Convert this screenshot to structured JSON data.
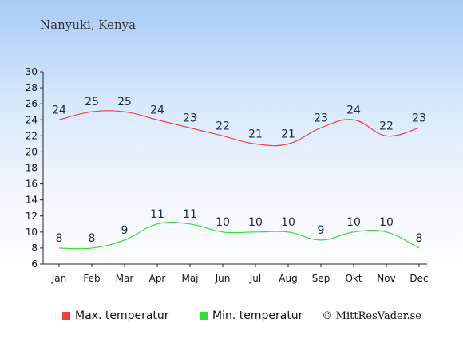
{
  "chart_data": {
    "type": "line",
    "title": "Nanyuki, Kenya",
    "categories": [
      "Jan",
      "Feb",
      "Mar",
      "Apr",
      "Maj",
      "Jun",
      "Jul",
      "Aug",
      "Sep",
      "Okt",
      "Nov",
      "Dec"
    ],
    "series": [
      {
        "name": "Max. temperatur",
        "color": "#f04040",
        "values": [
          24,
          25,
          25,
          24,
          23,
          22,
          21,
          21,
          23,
          24,
          22,
          23
        ]
      },
      {
        "name": "Min. temperatur",
        "color": "#33dd33",
        "values": [
          8,
          8,
          9,
          11,
          11,
          10,
          10,
          10,
          9,
          10,
          10,
          8
        ]
      }
    ],
    "yticks": [
      6,
      8,
      10,
      12,
      14,
      16,
      18,
      20,
      22,
      24,
      26,
      28,
      30
    ],
    "ylim": [
      6,
      30
    ],
    "grid": false,
    "legend_position": "bottom"
  },
  "copyright": "© MittResVader.se"
}
